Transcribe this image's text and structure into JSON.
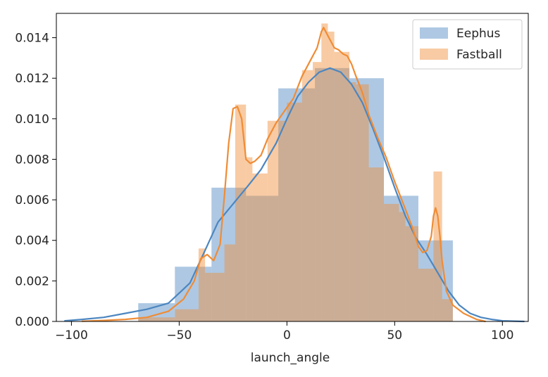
{
  "chart_data": {
    "type": "histogram",
    "xlabel": "launch_angle",
    "ylabel": "",
    "title": "",
    "xlim": [
      -107,
      112
    ],
    "ylim": [
      0,
      0.0152
    ],
    "x_ticks": [
      -100,
      -50,
      0,
      50,
      100
    ],
    "y_ticks": [
      0.0,
      0.002,
      0.004,
      0.006,
      0.008,
      0.01,
      0.012,
      0.014
    ],
    "x_tick_labels": [
      "−100",
      "−50",
      "0",
      "50",
      "100"
    ],
    "y_tick_labels": [
      "0.000",
      "0.002",
      "0.004",
      "0.006",
      "0.008",
      "0.010",
      "0.012",
      "0.014"
    ],
    "grid": false,
    "legend": {
      "placement": "top-right"
    },
    "series": [
      {
        "name": "Eephus",
        "color": "#4c86c0",
        "bins": [
          {
            "x0": -69,
            "x1": -52,
            "y": 0.0009
          },
          {
            "x0": -52,
            "x1": -35,
            "y": 0.0027
          },
          {
            "x0": -35,
            "x1": -19,
            "y": 0.0066
          },
          {
            "x0": -19,
            "x1": -4,
            "y": 0.0062
          },
          {
            "x0": -4,
            "x1": 13,
            "y": 0.0115
          },
          {
            "x0": 13,
            "x1": 29,
            "y": 0.0125
          },
          {
            "x0": 29,
            "x1": 45,
            "y": 0.012
          },
          {
            "x0": 45,
            "x1": 61,
            "y": 0.0062
          },
          {
            "x0": 61,
            "x1": 77,
            "y": 0.004
          }
        ],
        "kde": {
          "x": [
            -103,
            -95,
            -85,
            -75,
            -65,
            -55,
            -45,
            -38,
            -32,
            -25,
            -18,
            -12,
            -5,
            0,
            5,
            10,
            15,
            20,
            25,
            30,
            35,
            40,
            45,
            50,
            55,
            60,
            65,
            70,
            75,
            80,
            85,
            90,
            95,
            100,
            110
          ],
          "y": [
            3e-05,
            0.0001,
            0.0002,
            0.0004,
            0.0006,
            0.0009,
            0.0019,
            0.0035,
            0.0049,
            0.0058,
            0.0067,
            0.0075,
            0.0088,
            0.01,
            0.0111,
            0.0118,
            0.0123,
            0.0125,
            0.0123,
            0.0117,
            0.0108,
            0.0095,
            0.0081,
            0.0066,
            0.0052,
            0.0041,
            0.0033,
            0.0024,
            0.0015,
            0.0008,
            0.0004,
            0.0002,
            0.0001,
            3e-05,
            0.0
          ]
        }
      },
      {
        "name": "Fastball",
        "color": "#f08c35",
        "bins": [
          {
            "x0": -69,
            "x1": -52,
            "y": 0.0002
          },
          {
            "x0": -52,
            "x1": -41,
            "y": 0.0006
          },
          {
            "x0": -41,
            "x1": -38,
            "y": 0.0036
          },
          {
            "x0": -38,
            "x1": -29,
            "y": 0.0024
          },
          {
            "x0": -29,
            "x1": -24,
            "y": 0.0038
          },
          {
            "x0": -24,
            "x1": -19,
            "y": 0.0107
          },
          {
            "x0": -19,
            "x1": -16,
            "y": 0.0081
          },
          {
            "x0": -16,
            "x1": -9,
            "y": 0.0073
          },
          {
            "x0": -9,
            "x1": 0,
            "y": 0.0099
          },
          {
            "x0": 0,
            "x1": 7,
            "y": 0.0108
          },
          {
            "x0": 7,
            "x1": 12,
            "y": 0.0124
          },
          {
            "x0": 12,
            "x1": 16,
            "y": 0.0128
          },
          {
            "x0": 16,
            "x1": 19,
            "y": 0.0147
          },
          {
            "x0": 19,
            "x1": 22,
            "y": 0.0143
          },
          {
            "x0": 22,
            "x1": 29,
            "y": 0.0133
          },
          {
            "x0": 29,
            "x1": 32,
            "y": 0.0118
          },
          {
            "x0": 32,
            "x1": 38,
            "y": 0.0117
          },
          {
            "x0": 38,
            "x1": 45,
            "y": 0.0076
          },
          {
            "x0": 45,
            "x1": 52,
            "y": 0.0058
          },
          {
            "x0": 52,
            "x1": 55,
            "y": 0.0054
          },
          {
            "x0": 55,
            "x1": 61,
            "y": 0.0047
          },
          {
            "x0": 61,
            "x1": 68,
            "y": 0.0026
          },
          {
            "x0": 68,
            "x1": 72,
            "y": 0.0074
          },
          {
            "x0": 72,
            "x1": 77,
            "y": 0.0011
          }
        ],
        "kde": {
          "x": [
            -95,
            -85,
            -75,
            -65,
            -55,
            -48,
            -43,
            -40,
            -37,
            -34,
            -31,
            -29,
            -27,
            -25,
            -23,
            -21,
            -19,
            -17,
            -15,
            -12,
            -9,
            -5,
            -1,
            3,
            7,
            11,
            14,
            16,
            17,
            18,
            20,
            22,
            24,
            26,
            28,
            30,
            32,
            35,
            38,
            42,
            46,
            50,
            54,
            58,
            61,
            63,
            65,
            67,
            68,
            69,
            70,
            71,
            72,
            74,
            77,
            82,
            88,
            92
          ],
          "y": [
            1e-05,
            5e-05,
            0.0001,
            0.0002,
            0.0005,
            0.0011,
            0.002,
            0.0031,
            0.0033,
            0.003,
            0.0038,
            0.0062,
            0.0088,
            0.0105,
            0.0106,
            0.01,
            0.008,
            0.0078,
            0.0079,
            0.0082,
            0.009,
            0.0098,
            0.0104,
            0.011,
            0.0121,
            0.0129,
            0.0135,
            0.0143,
            0.0145,
            0.0143,
            0.0139,
            0.0135,
            0.0134,
            0.0132,
            0.0131,
            0.0127,
            0.0121,
            0.0113,
            0.0102,
            0.0091,
            0.0081,
            0.0069,
            0.0058,
            0.0047,
            0.0037,
            0.0034,
            0.0035,
            0.0042,
            0.0052,
            0.0056,
            0.0052,
            0.0042,
            0.003,
            0.0015,
            0.0008,
            0.0004,
            0.0001,
            0.0
          ]
        }
      }
    ]
  }
}
